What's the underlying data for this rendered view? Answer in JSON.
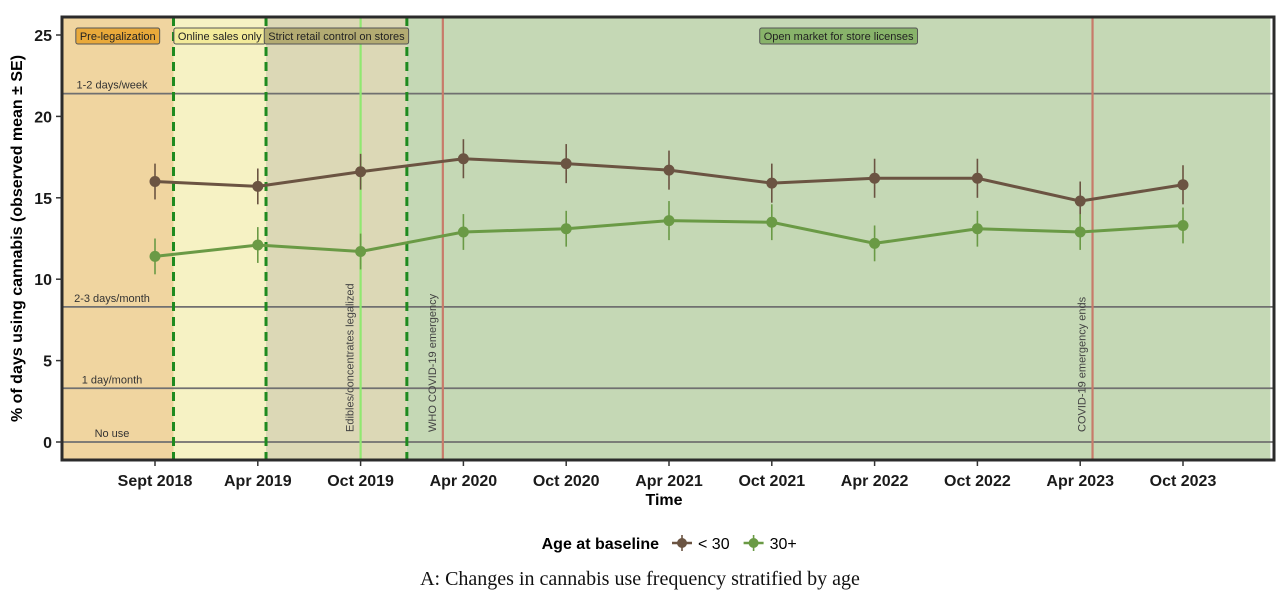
{
  "caption": "A: Changes in cannabis use frequency stratified by age",
  "chart_data": {
    "type": "line",
    "title": "",
    "xlabel": "Time",
    "ylabel": "% of days using cannabis (observed mean ± SE)",
    "ylim": [
      0,
      25
    ],
    "yticks": [
      0,
      5,
      10,
      15,
      20,
      25
    ],
    "categories": [
      "Sept 2018",
      "Apr 2019",
      "Oct 2019",
      "Apr 2020",
      "Oct 2020",
      "Apr 2021",
      "Oct 2021",
      "Apr 2022",
      "Oct 2022",
      "Apr 2023",
      "Oct 2023"
    ],
    "series": [
      {
        "name": "< 30",
        "color": "#6b5442",
        "values": [
          16.0,
          15.7,
          16.6,
          17.4,
          17.1,
          16.7,
          15.9,
          16.2,
          16.2,
          14.8,
          15.8
        ],
        "se": [
          1.1,
          1.1,
          1.1,
          1.2,
          1.2,
          1.2,
          1.2,
          1.2,
          1.2,
          1.2,
          1.2
        ]
      },
      {
        "name": "30+",
        "color": "#6a9a45",
        "values": [
          11.4,
          12.1,
          11.7,
          12.9,
          13.1,
          13.6,
          13.5,
          12.2,
          13.1,
          12.9,
          13.3
        ],
        "se": [
          1.1,
          1.1,
          1.1,
          1.1,
          1.1,
          1.2,
          1.1,
          1.1,
          1.1,
          1.1,
          1.1
        ]
      }
    ],
    "reference_lines": [
      {
        "label": "1-2 days/week",
        "value": 21.4
      },
      {
        "label": "2-3 days/month",
        "value": 8.3
      },
      {
        "label": "1 day/month",
        "value": 3.3
      },
      {
        "label": "No use",
        "value": 0
      }
    ],
    "phases": [
      {
        "label": "Pre-legalization",
        "start": -1.45,
        "end": 0.18,
        "color": "#f0d5a0",
        "label_bg": "#e9a93a"
      },
      {
        "label": "Online sales only",
        "start": 0.18,
        "end": 1.08,
        "color": "#f6f2c4",
        "label_bg": "#f3eb9a"
      },
      {
        "label": "Strict retail control on stores",
        "start": 1.08,
        "end": 2.45,
        "color": "#dcd8b6",
        "label_bg": "#b3ab72"
      },
      {
        "label": "Open market for store licenses",
        "start": 2.45,
        "end": 10.85,
        "color": "#c5d8b5",
        "label_bg": "#88b36a"
      }
    ],
    "phase_dividers": [
      0.18,
      1.08,
      2.45
    ],
    "events": [
      {
        "label": "Edibles/concentrates legalized",
        "x": 2.0,
        "color": "#90e870"
      },
      {
        "label": "WHO COVID-19 emergency",
        "x": 2.8,
        "color": "#c87a6a"
      },
      {
        "label": "COVID-19 emergency ends",
        "x": 9.12,
        "color": "#c87a6a"
      }
    ],
    "legend": {
      "title": "Age at baseline",
      "placement": "bottom"
    },
    "grid": false
  }
}
